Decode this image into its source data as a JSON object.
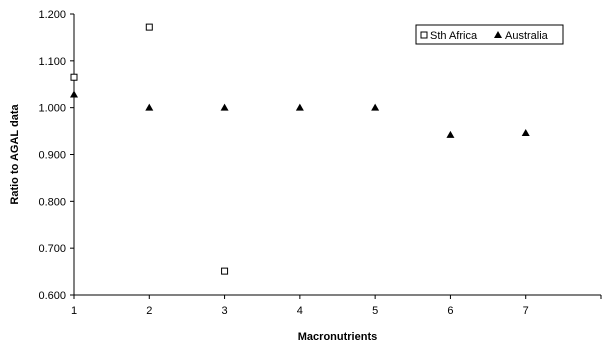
{
  "chart_data": {
    "type": "scatter",
    "title": "",
    "xlabel": "Macronutrients",
    "ylabel": "Ratio to AGAL data",
    "xlim": [
      1,
      8
    ],
    "ylim": [
      0.6,
      1.2
    ],
    "xticks": [
      1,
      2,
      3,
      4,
      5,
      6,
      7
    ],
    "xtick_labels": [
      "1",
      "2",
      "3",
      "4",
      "5",
      "6",
      "7"
    ],
    "yticks": [
      0.6,
      0.7,
      0.8,
      0.9,
      1.0,
      1.1,
      1.2
    ],
    "ytick_labels": [
      "0.600",
      "0.700",
      "0.800",
      "0.900",
      "1.000",
      "1.100",
      "1.200"
    ],
    "grid": false,
    "legend_position": "top-right",
    "series": [
      {
        "name": "Sth Africa",
        "marker": "open-square",
        "color": "#000000",
        "points": [
          {
            "x": 1,
            "y": 1.065
          },
          {
            "x": 2,
            "y": 1.172
          },
          {
            "x": 3,
            "y": 0.651
          }
        ]
      },
      {
        "name": "Australia",
        "marker": "filled-triangle",
        "color": "#000000",
        "points": [
          {
            "x": 1,
            "y": 1.028
          },
          {
            "x": 2,
            "y": 1.0
          },
          {
            "x": 3,
            "y": 1.0
          },
          {
            "x": 4,
            "y": 1.0
          },
          {
            "x": 5,
            "y": 1.0
          },
          {
            "x": 6,
            "y": 0.942
          },
          {
            "x": 7,
            "y": 0.946
          }
        ]
      }
    ]
  }
}
